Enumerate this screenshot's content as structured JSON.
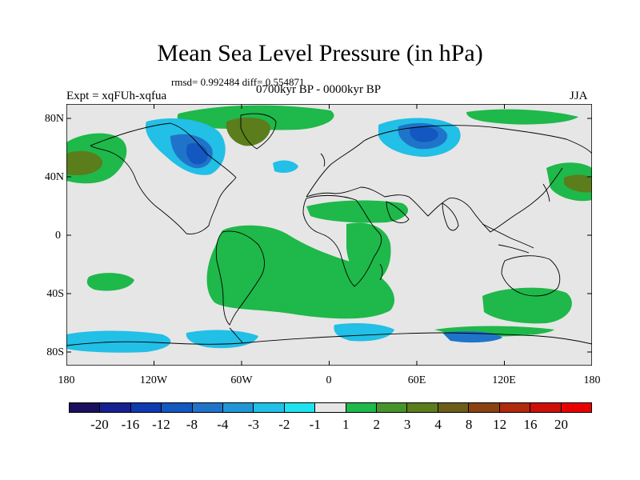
{
  "title": "Mean Sea Level Pressure (in hPa)",
  "stats_line": "rmsd= 0.992484 diff= 0.554871",
  "period": "0700kyr BP - 0000kyr BP",
  "experiment": "Expt = xqFUh-xqfua",
  "season": "JJA",
  "y_axis_labels": [
    "80N",
    "40N",
    "0",
    "40S",
    "80S"
  ],
  "x_axis_labels": [
    "180",
    "120W",
    "60W",
    "0",
    "60E",
    "120E",
    "180"
  ],
  "colorbar": {
    "labels": [
      "-20",
      "-16",
      "-12",
      "-8",
      "-4",
      "-3",
      "-2",
      "-1",
      "1",
      "2",
      "3",
      "4",
      "8",
      "12",
      "16",
      "20"
    ],
    "colors": [
      "#1a0f5e",
      "#16208f",
      "#0f3ab0",
      "#1357c0",
      "#1f74c9",
      "#2196d6",
      "#22bfe6",
      "#1ee3ee",
      "#e6e6e6",
      "#1fb84a",
      "#46932a",
      "#5b7d1c",
      "#6c5e18",
      "#8a4210",
      "#b02a0c",
      "#cc1008",
      "#e80000"
    ]
  },
  "colors": {
    "background": "#e6e6e6",
    "coast": "#000000"
  }
}
